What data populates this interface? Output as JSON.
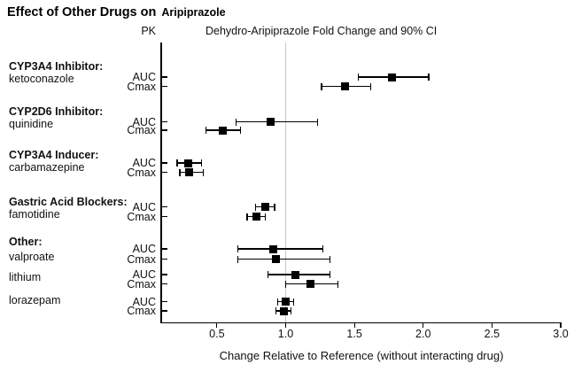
{
  "title": {
    "main": "Effect of Other Drugs on",
    "drug": "Aripiprazole"
  },
  "header": {
    "pk_label": "PK",
    "column_title": "Dehydro-Aripiprazole Fold Change and 90% CI"
  },
  "chart_data": {
    "type": "forest",
    "title": "Effect of Other Drugs on Aripiprazole",
    "subtitle": "Dehydro-Aripiprazole Fold Change and 90% CI",
    "xlabel": "Change Relative to Reference (without interacting drug)",
    "ylabel": "PK",
    "xlim": [
      0.095,
      3.0
    ],
    "x_ticks": [
      0.5,
      1.0,
      1.5,
      2.0,
      2.5,
      3.0
    ],
    "x_tick_labels": [
      "0.5",
      "1.0",
      "1.5",
      "2.0",
      "2.5",
      "3.0"
    ],
    "reference_value": 1.0,
    "reference_line_color": "#c7c7c7",
    "marker_color": "#000000",
    "row_labels": [
      "AUC",
      "Cmax"
    ],
    "groups": [
      {
        "header": "CYP3A4 Inhibitor:",
        "drug": "ketoconazole",
        "auc": {
          "est": 1.77,
          "lo": 1.53,
          "hi": 2.04
        },
        "cmax": {
          "est": 1.43,
          "lo": 1.26,
          "hi": 1.62
        }
      },
      {
        "header": "CYP2D6 Inhibitor:",
        "drug": "quinidine",
        "auc": {
          "est": 0.89,
          "lo": 0.64,
          "hi": 1.23
        },
        "cmax": {
          "est": 0.54,
          "lo": 0.42,
          "hi": 0.67
        }
      },
      {
        "header": "CYP3A4 Inducer:",
        "drug": "carbamazepine",
        "auc": {
          "est": 0.29,
          "lo": 0.21,
          "hi": 0.39
        },
        "cmax": {
          "est": 0.3,
          "lo": 0.23,
          "hi": 0.4
        }
      },
      {
        "header": "Gastric Acid Blockers:",
        "drug": "famotidine",
        "auc": {
          "est": 0.85,
          "lo": 0.78,
          "hi": 0.92
        },
        "cmax": {
          "est": 0.79,
          "lo": 0.72,
          "hi": 0.85
        }
      },
      {
        "header": "Other:",
        "drug": "valproate",
        "auc": {
          "est": 0.91,
          "lo": 0.65,
          "hi": 1.27
        },
        "cmax": {
          "est": 0.93,
          "lo": 0.65,
          "hi": 1.32
        }
      },
      {
        "header": null,
        "drug": "lithium",
        "auc": {
          "est": 1.07,
          "lo": 0.87,
          "hi": 1.32
        },
        "cmax": {
          "est": 1.18,
          "lo": 1.0,
          "hi": 1.38
        }
      },
      {
        "header": null,
        "drug": "lorazepam",
        "auc": {
          "est": 1.0,
          "lo": 0.94,
          "hi": 1.06
        },
        "cmax": {
          "est": 0.99,
          "lo": 0.93,
          "hi": 1.04
        }
      }
    ]
  }
}
